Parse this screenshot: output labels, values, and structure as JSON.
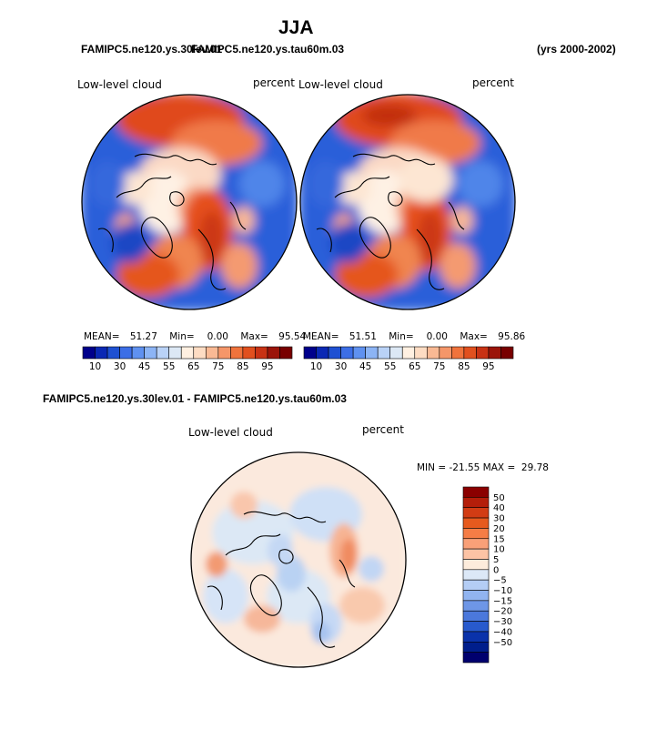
{
  "page": {
    "season": "JJA",
    "left_case": "FAMIPC5.ne120.ys.30lev.01",
    "right_case": "FAMIPC5.ne120.ys.tau60m.03",
    "years": "(yrs 2000-2002)",
    "diff_title": "FAMIPC5.ne120.ys.30lev.01 - FAMIPC5.ne120.ys.tau60m.03"
  },
  "chart_data": [
    {
      "type": "heatmap",
      "projection": "north polar stereographic",
      "title": "Low-level cloud",
      "units": "percent",
      "case": "FAMIPC5.ne120.ys.30lev.01",
      "stats": {
        "mean_label": "MEAN=",
        "mean": "51.27",
        "min_label": "Min=",
        "min": "0.00",
        "max_label": "Max=",
        "max": "95.54"
      }
    },
    {
      "type": "heatmap",
      "projection": "north polar stereographic",
      "title": "Low-level cloud",
      "units": "percent",
      "case": "FAMIPC5.ne120.ys.tau60m.03",
      "stats": {
        "mean_label": "MEAN=",
        "mean": "51.51",
        "min_label": "Min=",
        "min": "0.00",
        "max_label": "Max=",
        "max": "95.86"
      }
    },
    {
      "type": "heatmap",
      "projection": "north polar stereographic",
      "title": "Low-level cloud",
      "units": "percent",
      "case": "FAMIPC5.ne120.ys.30lev.01 - FAMIPC5.ne120.ys.tau60m.03",
      "stats_text": "MIN = -21.55 MAX =  29.78"
    }
  ],
  "colorbar_top": {
    "colors": [
      "#00008b",
      "#0a28b4",
      "#1e50d2",
      "#3c6ee6",
      "#5f91f0",
      "#8cb4f5",
      "#b9d2f7",
      "#dce8f5",
      "#fff0e1",
      "#fddcc3",
      "#f9b994",
      "#f59669",
      "#f0733c",
      "#e1501e",
      "#c83214",
      "#9b1409",
      "#780000"
    ],
    "labels": [
      "10",
      "30",
      "45",
      "55",
      "65",
      "75",
      "85",
      "95"
    ]
  },
  "colorbar_diff": {
    "colors": [
      "#8b0000",
      "#b41e0a",
      "#d23c14",
      "#e65a1e",
      "#f57d46",
      "#f9a078",
      "#fcc3a5",
      "#fdecdc",
      "#dce8f7",
      "#b4cdf5",
      "#91b4f0",
      "#6e96e6",
      "#4b78dc",
      "#285acd",
      "#0a32aa",
      "#001e8c",
      "#00006e"
    ],
    "labels": [
      "50",
      "40",
      "30",
      "20",
      "15",
      "10",
      "5",
      "0",
      "−5",
      "−10",
      "−15",
      "−20",
      "−30",
      "−40",
      "−50"
    ]
  }
}
